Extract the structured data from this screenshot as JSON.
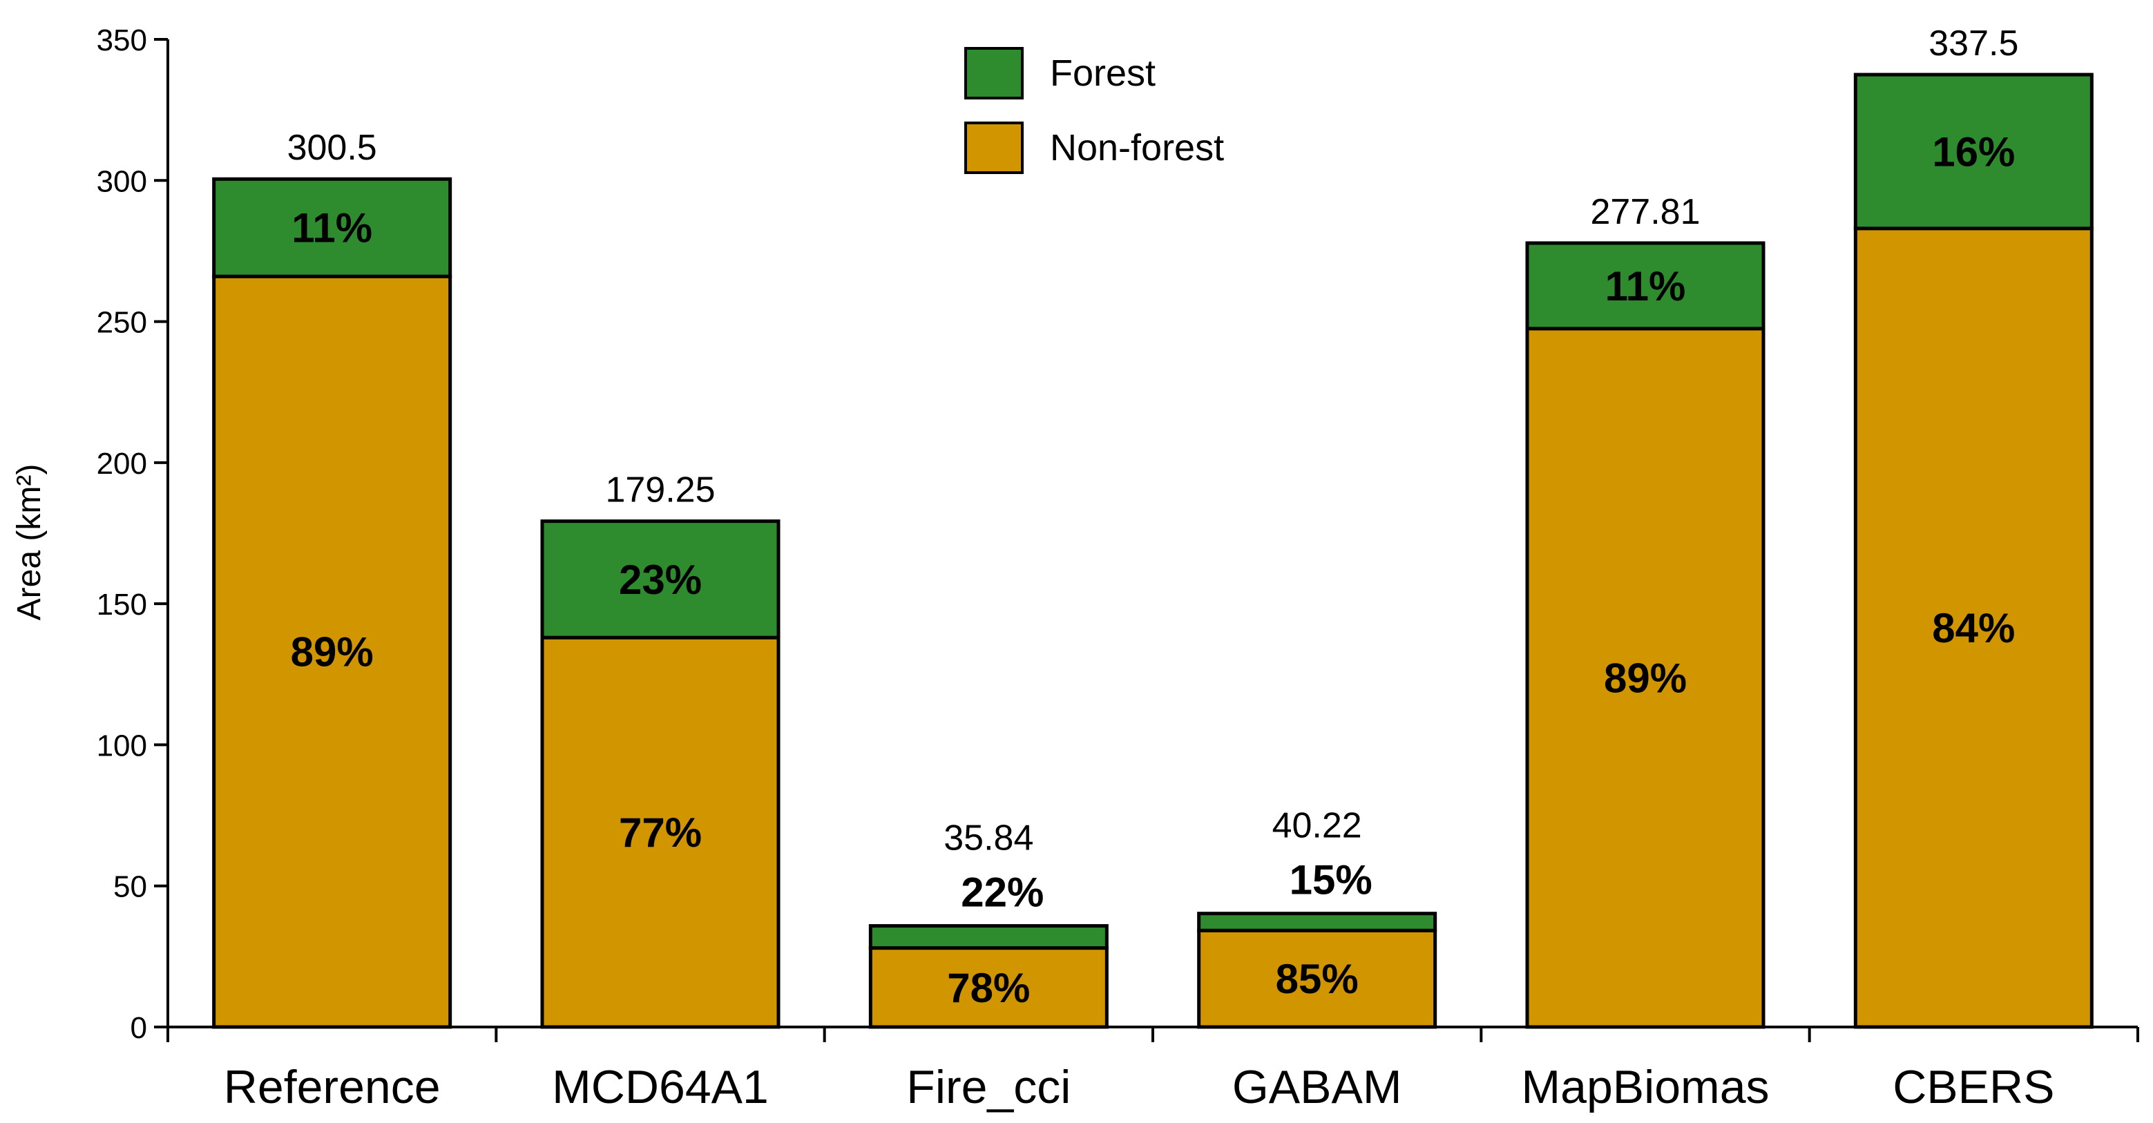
{
  "chart_data": {
    "type": "bar",
    "stacked": true,
    "title": "",
    "xlabel": "",
    "ylabel": "Area (km²)",
    "ylim": [
      0,
      350
    ],
    "yticks": [
      0,
      50,
      100,
      150,
      200,
      250,
      300,
      350
    ],
    "categories": [
      "Reference",
      "MCD64A1",
      "Fire_cci",
      "GABAM",
      "MapBiomas",
      "CBERS"
    ],
    "totals": [
      300.5,
      179.25,
      35.84,
      40.22,
      277.81,
      337.5
    ],
    "total_labels": [
      "300.5",
      "179.25",
      "35.84",
      "40.22",
      "277.81",
      "337.5"
    ],
    "series": [
      {
        "name": "Non-forest",
        "color": "#D19500",
        "values": [
          266.0,
          138.0,
          28.0,
          34.2,
          247.5,
          283.0
        ],
        "labels": [
          "89%",
          "77%",
          "78%",
          "85%",
          "89%",
          "84%"
        ]
      },
      {
        "name": "Forest",
        "color": "#2E8B2E",
        "values": [
          34.5,
          41.25,
          7.84,
          6.02,
          30.31,
          54.5
        ],
        "labels": [
          "11%",
          "23%",
          "22%",
          "15%",
          "11%",
          "16%"
        ]
      }
    ],
    "legend": {
      "position": "top-center",
      "entries": [
        "Forest",
        "Non-forest"
      ]
    }
  }
}
